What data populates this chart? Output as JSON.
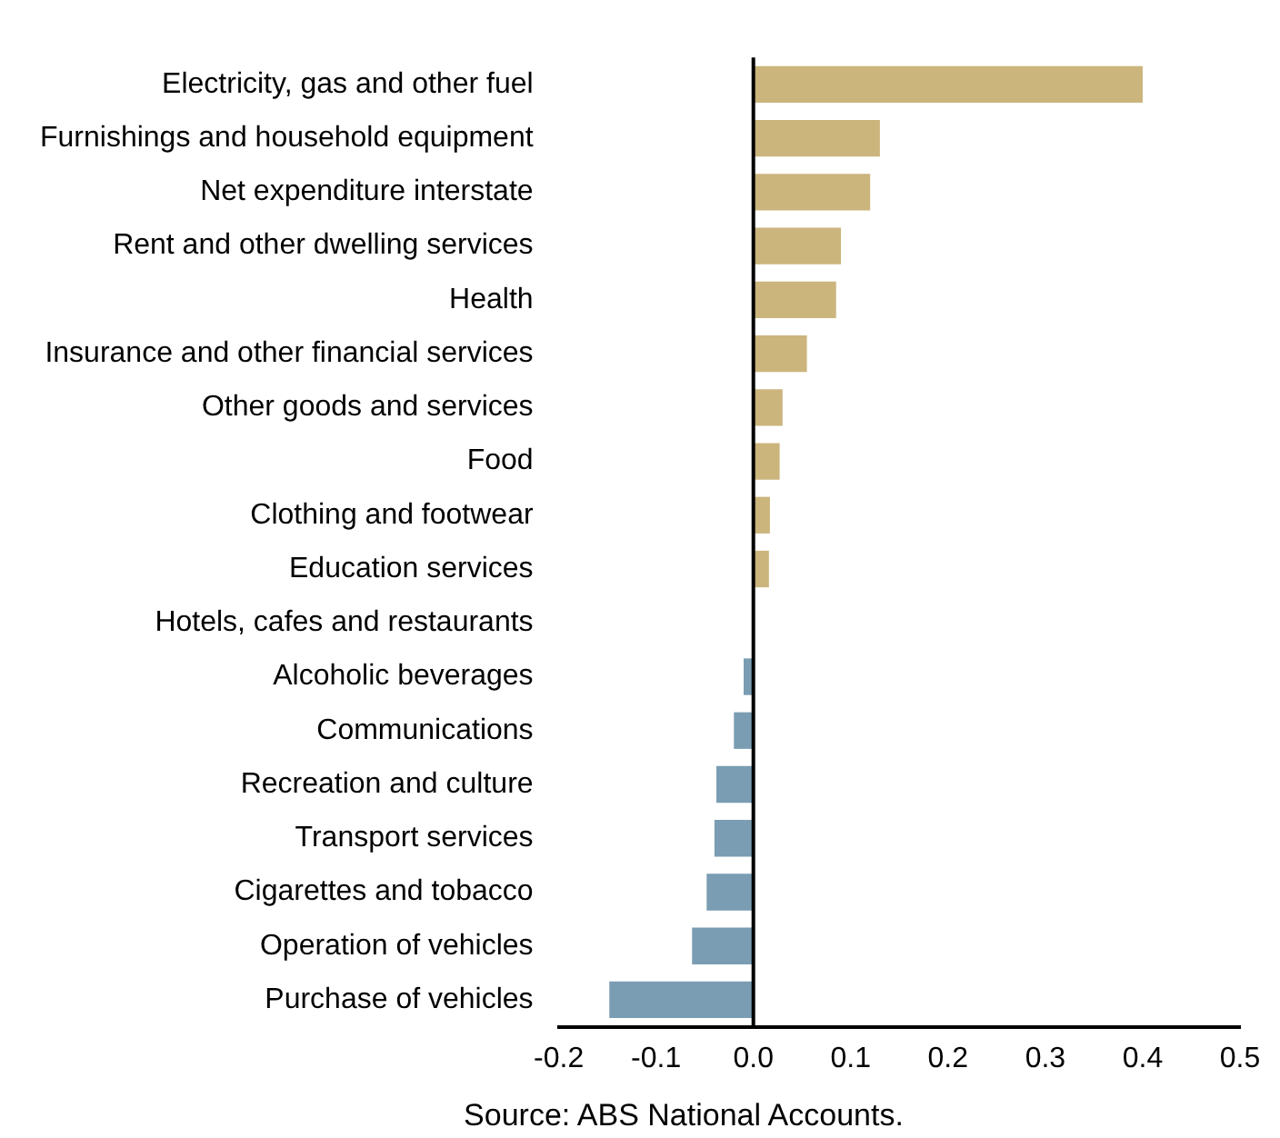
{
  "chart_data": {
    "type": "bar",
    "orientation": "horizontal",
    "categories": [
      "Electricity, gas and other fuel",
      "Furnishings and household equipment",
      "Net expenditure interstate",
      "Rent and other dwelling services",
      "Health",
      "Insurance and other financial services",
      "Other goods and services",
      "Food",
      "Clothing and footwear",
      "Education services",
      "Hotels, cafes and restaurants",
      "Alcoholic beverages",
      "Communications",
      "Recreation and culture",
      "Transport services",
      "Cigarettes and tobacco",
      "Operation of vehicles",
      "Purchase of vehicles"
    ],
    "values": [
      0.4,
      0.13,
      0.12,
      0.09,
      0.085,
      0.055,
      0.03,
      0.027,
      0.017,
      0.016,
      0,
      -0.01,
      -0.02,
      -0.038,
      -0.04,
      -0.048,
      -0.063,
      -0.148
    ],
    "colors": [
      "#cbb57d",
      "#cbb57d",
      "#cbb57d",
      "#cbb57d",
      "#cbb57d",
      "#cbb57d",
      "#cbb57d",
      "#cbb57d",
      "#cbb57d",
      "#cbb57d",
      "#cbb57d",
      "#7a9db3",
      "#7a9db3",
      "#7a9db3",
      "#7a9db3",
      "#7a9db3",
      "#7a9db3",
      "#7a9db3"
    ],
    "xlim": [
      -0.2,
      0.5
    ],
    "xticks": [
      {
        "value": -0.2,
        "label": "-0.2"
      },
      {
        "value": -0.1,
        "label": "-0.1"
      },
      {
        "value": 0,
        "label": "0.0"
      },
      {
        "value": 0.1,
        "label": "0.1"
      },
      {
        "value": 0.2,
        "label": "0.2"
      },
      {
        "value": 0.3,
        "label": "0.3"
      },
      {
        "value": 0.4,
        "label": "0.4"
      },
      {
        "value": 0.5,
        "label": "0.5"
      }
    ],
    "ref_lines": [
      {
        "axis": "x",
        "value": 0,
        "color": "#000000"
      }
    ],
    "grid": false,
    "legend": false,
    "annotations": [
      "Source: ABS National Accounts."
    ]
  }
}
